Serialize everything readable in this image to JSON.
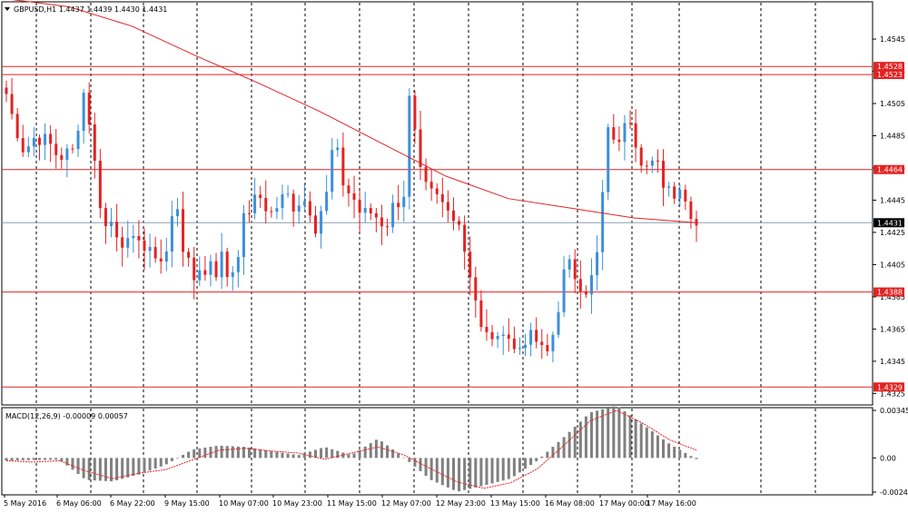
{
  "header": {
    "symbol_info": "GBPUSD,H1  1.4437 1.4439 1.4430 1.4431",
    "macd_info": "MACD(12,26,9) -0.00009 0.00057"
  },
  "colors": {
    "bull": "#3d8fd8",
    "bear": "#e32222",
    "level": "#e32222",
    "ma": "#e32222",
    "current_line": "#8c9dab",
    "current_tag_bg": "#000000",
    "histogram": "#808080",
    "signal": "#e32222",
    "grid": "#000000"
  },
  "chart_data": [
    {
      "type": "candlestick",
      "yaxis_ticks": [
        "1.4545",
        "1.4525",
        "1.4505",
        "1.4485",
        "1.4465",
        "1.4445",
        "1.4425",
        "1.4405",
        "1.4385",
        "1.4365",
        "1.4345",
        "1.4325"
      ],
      "ylim": [
        1.4319,
        1.4567
      ],
      "xaxis_labels": [
        "5 May 2016",
        "6 May 06:00",
        "6 May 22:00",
        "9 May 15:00",
        "10 May 07:00",
        "10 May 23:00",
        "11 May 15:00",
        "12 May 07:00",
        "12 May 23:00",
        "13 May 15:00",
        "16 May 08:00",
        "17 May 00:00",
        "17 May 16:00"
      ],
      "horizontal_levels": [
        {
          "price": 1.4528,
          "label": "1.4528"
        },
        {
          "price": 1.4523,
          "label": "1.4523"
        },
        {
          "price": 1.4464,
          "label": "1.4464"
        },
        {
          "price": 1.4388,
          "label": "1.4388"
        },
        {
          "price": 1.4329,
          "label": "1.4329"
        }
      ],
      "current_price": {
        "price": 1.4431,
        "label": "1.4431"
      },
      "close_path": [
        1.4511,
        1.4497,
        1.4487,
        1.4476,
        1.448,
        1.4485,
        1.4484,
        1.448,
        1.4478,
        1.447,
        1.4476,
        1.447,
        1.4485,
        1.4515,
        1.45,
        1.447,
        1.4445,
        1.4428,
        1.4432,
        1.4425,
        1.442,
        1.4415,
        1.4418,
        1.4428,
        1.4405,
        1.4415,
        1.441,
        1.4405,
        1.4425,
        1.445,
        1.442,
        1.4405,
        1.4395,
        1.4405,
        1.4398,
        1.441,
        1.44,
        1.4412,
        1.4395,
        1.4405,
        1.442,
        1.444,
        1.444,
        1.4448,
        1.4445,
        1.4435,
        1.444,
        1.4445,
        1.4448,
        1.4442,
        1.4445,
        1.4445,
        1.444,
        1.4428,
        1.4442,
        1.445,
        1.4485,
        1.4465,
        1.445,
        1.445,
        1.444,
        1.4435,
        1.4438,
        1.4436,
        1.4432,
        1.443,
        1.444,
        1.4445,
        1.445,
        1.4512,
        1.448,
        1.4455,
        1.445,
        1.4447,
        1.4445,
        1.444,
        1.4436,
        1.444,
        1.442,
        1.4405,
        1.439,
        1.4365,
        1.436,
        1.4362,
        1.4355,
        1.4368,
        1.436,
        1.435,
        1.4355,
        1.4362,
        1.4357,
        1.4358,
        1.4345,
        1.4355,
        1.437,
        1.4395,
        1.4405,
        1.44,
        1.4395,
        1.439,
        1.4395,
        1.441,
        1.445,
        1.449,
        1.4485,
        1.4475,
        1.4505,
        1.4495,
        1.4475,
        1.447,
        1.4462,
        1.447,
        1.4458,
        1.4455,
        1.445,
        1.4456,
        1.4445,
        1.4439,
        1.4431
      ],
      "ma_path": [
        1.457,
        1.4565,
        1.4553,
        1.4535,
        1.4518,
        1.45,
        1.448,
        1.446,
        1.4446,
        1.444,
        1.4434,
        1.4431
      ],
      "macd": {
        "ylim": [
          -0.00248,
          0.00345
        ],
        "ticks": [
          "0.00345",
          "0.00",
          "-0.00248"
        ],
        "signal_path": [
          -0.0002,
          -0.0003,
          -0.0002,
          -0.00095,
          -0.0015,
          -0.0011,
          -0.00085,
          -0.00015,
          0.00055,
          0.0007,
          0.0005,
          0.00035,
          -0.0001,
          0.00035,
          0.0008,
          0.0002,
          -0.0008,
          -0.00175,
          -0.0022,
          -0.0018,
          -0.0008,
          0.0009,
          0.0027,
          0.00345,
          0.0025,
          0.0013,
          0.00057
        ],
        "hist_path": [
          -0.0002,
          -0.00015,
          -0.00012,
          -0.0016,
          -0.0017,
          -0.0012,
          -0.0005,
          0.0006,
          0.0009,
          0.0008,
          0.0005,
          0.0002,
          0.0008,
          0.0002,
          0.0014,
          0.0,
          -0.0016,
          -0.00245,
          -0.002,
          -0.0015,
          -0.0002,
          0.0015,
          0.0033,
          0.0038,
          0.0024,
          0.001,
          -9e-05
        ]
      }
    }
  ]
}
